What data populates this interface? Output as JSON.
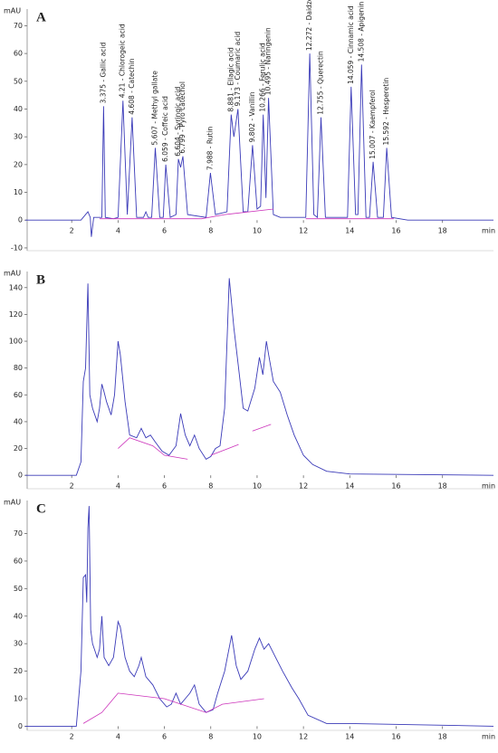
{
  "chart_data": [
    {
      "type": "line",
      "title": "A",
      "y_label": "mAU",
      "x_label": "min",
      "xlim": [
        0,
        20.2
      ],
      "ylim": [
        -11,
        76
      ],
      "xticks": [
        2,
        4,
        6,
        8,
        10,
        12,
        14,
        16,
        18
      ],
      "yticks": [
        -10,
        0,
        10,
        20,
        30,
        40,
        50,
        60,
        70
      ],
      "series": [
        {
          "color": "#3a3ab8",
          "x": [
            0,
            2.4,
            2.6,
            2.7,
            2.8,
            2.85,
            2.95,
            3.1,
            3.3,
            3.375,
            3.45,
            3.8,
            4.0,
            4.21,
            4.4,
            4.608,
            4.8,
            5.1,
            5.2,
            5.3,
            5.45,
            5.607,
            5.8,
            5.95,
            6.059,
            6.25,
            6.5,
            6.604,
            6.7,
            6.799,
            7.0,
            7.8,
            7.988,
            8.2,
            8.7,
            8.881,
            9.0,
            9.173,
            9.4,
            9.6,
            9.802,
            10.0,
            10.15,
            10.266,
            10.38,
            10.495,
            10.7,
            11.0,
            12.1,
            12.272,
            12.45,
            12.6,
            12.755,
            12.95,
            13.9,
            14.059,
            14.25,
            14.35,
            14.508,
            14.7,
            14.85,
            15.007,
            15.2,
            15.45,
            15.592,
            15.8,
            16.5,
            20.2
          ],
          "values": [
            0,
            0,
            2,
            3,
            1,
            -6,
            1,
            1,
            1,
            41,
            1,
            0.5,
            1,
            43,
            2,
            37,
            1,
            1,
            3,
            1,
            1,
            26,
            1,
            1,
            20,
            1,
            2,
            22,
            19,
            23,
            2,
            1,
            17,
            2,
            3,
            38,
            30,
            40,
            3,
            3,
            27,
            4,
            5,
            38,
            8,
            44,
            2,
            1,
            1,
            60,
            2,
            1,
            37,
            1,
            1,
            48,
            2,
            2,
            56,
            1,
            1,
            21,
            1,
            1,
            26,
            1,
            0,
            0
          ]
        },
        {
          "color": "#cc33bb",
          "x": [
            3.2,
            7.6,
            8.6,
            10.7,
            11.5,
            12.1,
            15.9
          ],
          "values": [
            0.5,
            0.5,
            2,
            4,
            null,
            0.5,
            0.5
          ]
        }
      ],
      "annotations": [
        {
          "x": 3.375,
          "y": 41,
          "text": "3.375 - Gallic acid"
        },
        {
          "x": 4.21,
          "y": 43,
          "text": "4.21 - Chlorogeic acid"
        },
        {
          "x": 4.608,
          "y": 37,
          "text": "4.608 - Catechin"
        },
        {
          "x": 5.607,
          "y": 26,
          "text": "5.607 - Methyl gallate"
        },
        {
          "x": 6.059,
          "y": 20,
          "text": "6.059 - Coffeic acid"
        },
        {
          "x": 6.604,
          "y": 22,
          "text": "6.604 - Syringic acid"
        },
        {
          "x": 6.799,
          "y": 23,
          "text": "6.799 - Pyro catechol"
        },
        {
          "x": 7.988,
          "y": 17,
          "text": "7.988 - Rutin"
        },
        {
          "x": 8.881,
          "y": 38,
          "text": "8.881 - Ellagic acid"
        },
        {
          "x": 9.173,
          "y": 40,
          "text": "9.173 - Coumaric acid"
        },
        {
          "x": 9.802,
          "y": 27,
          "text": "9.802 - Vanillin"
        },
        {
          "x": 10.266,
          "y": 38,
          "text": "10.266 - Ferulic acid"
        },
        {
          "x": 10.495,
          "y": 44,
          "text": "10.495 - Naringenin"
        },
        {
          "x": 12.272,
          "y": 60,
          "text": "12.272 - Daidzein"
        },
        {
          "x": 12.755,
          "y": 37,
          "text": "12.755 - Querectin"
        },
        {
          "x": 14.059,
          "y": 48,
          "text": "14.059 - Cinnamic acid"
        },
        {
          "x": 14.508,
          "y": 56,
          "text": "14.508 - Apigenin"
        },
        {
          "x": 15.007,
          "y": 21,
          "text": "15.007 - Kaempferol"
        },
        {
          "x": 15.592,
          "y": 26,
          "text": "15.592 - Hesperetin"
        }
      ]
    },
    {
      "type": "line",
      "title": "B",
      "y_label": "mAU",
      "x_label": "min",
      "xlim": [
        0,
        20.2
      ],
      "ylim": [
        -10,
        152
      ],
      "xticks": [
        2,
        4,
        6,
        8,
        10,
        12,
        14,
        16,
        18
      ],
      "yticks": [
        0,
        20,
        40,
        60,
        80,
        100,
        120,
        140
      ],
      "series": [
        {
          "color": "#3a3ab8",
          "x": [
            0,
            2.2,
            2.4,
            2.5,
            2.6,
            2.7,
            2.78,
            2.9,
            3.1,
            3.2,
            3.3,
            3.4,
            3.5,
            3.7,
            3.85,
            4.0,
            4.1,
            4.3,
            4.5,
            4.8,
            5.0,
            5.2,
            5.4,
            5.6,
            5.9,
            6.2,
            6.5,
            6.7,
            6.9,
            7.1,
            7.3,
            7.5,
            7.8,
            8.0,
            8.2,
            8.4,
            8.6,
            8.8,
            9.0,
            9.2,
            9.4,
            9.6,
            9.9,
            10.1,
            10.25,
            10.4,
            10.5,
            10.7,
            11.0,
            11.3,
            11.6,
            12.0,
            12.4,
            13.0,
            14.0,
            20.2
          ],
          "values": [
            0,
            0,
            10,
            70,
            80,
            143,
            60,
            50,
            40,
            50,
            68,
            62,
            55,
            45,
            60,
            100,
            90,
            55,
            30,
            28,
            35,
            28,
            30,
            25,
            18,
            15,
            22,
            46,
            30,
            22,
            30,
            20,
            12,
            14,
            20,
            22,
            50,
            147,
            110,
            80,
            50,
            48,
            65,
            88,
            75,
            100,
            90,
            70,
            62,
            45,
            30,
            15,
            8,
            3,
            1,
            0
          ]
        },
        {
          "color": "#cc33bb",
          "x": [
            4.0,
            4.5,
            5.5,
            6.0,
            7.0,
            7.5,
            8.0,
            9.2,
            9.5,
            9.8,
            10.6
          ],
          "values": [
            20,
            28,
            22,
            15,
            12,
            null,
            15,
            23,
            null,
            33,
            38
          ]
        }
      ]
    },
    {
      "type": "line",
      "title": "C",
      "y_label": "mAU",
      "x_label": "min",
      "xlim": [
        0,
        20.2
      ],
      "ylim": [
        -1.5,
        82
      ],
      "xticks": [
        2,
        4,
        6,
        8,
        10,
        12,
        14,
        16,
        18
      ],
      "yticks": [
        0,
        10,
        20,
        30,
        40,
        50,
        60,
        70
      ],
      "series": [
        {
          "color": "#3a3ab8",
          "x": [
            0,
            2.2,
            2.4,
            2.5,
            2.6,
            2.65,
            2.7,
            2.75,
            2.82,
            2.9,
            3.1,
            3.2,
            3.3,
            3.4,
            3.6,
            3.8,
            4.0,
            4.1,
            4.3,
            4.5,
            4.7,
            4.9,
            5.0,
            5.2,
            5.5,
            5.8,
            6.1,
            6.3,
            6.5,
            6.7,
            6.9,
            7.1,
            7.3,
            7.5,
            7.8,
            8.1,
            8.3,
            8.6,
            8.9,
            9.1,
            9.3,
            9.6,
            9.9,
            10.1,
            10.3,
            10.5,
            10.8,
            11.1,
            11.5,
            11.8,
            12.2,
            13.0,
            14.0,
            20.2
          ],
          "values": [
            0,
            0,
            20,
            54,
            55,
            45,
            72,
            80,
            35,
            30,
            25,
            28,
            40,
            25,
            22,
            25,
            38,
            36,
            25,
            20,
            18,
            22,
            25,
            18,
            15,
            10,
            7,
            8,
            12,
            8,
            10,
            12,
            15,
            8,
            5,
            6,
            12,
            20,
            33,
            22,
            17,
            20,
            28,
            32,
            28,
            30,
            25,
            20,
            14,
            10,
            4,
            1,
            1,
            0
          ]
        },
        {
          "color": "#cc33bb",
          "x": [
            2.5,
            3.3,
            4.0,
            6.0,
            7.8,
            8.5,
            10.3
          ],
          "values": [
            1,
            5,
            12,
            10,
            5,
            8,
            10
          ]
        }
      ]
    }
  ]
}
